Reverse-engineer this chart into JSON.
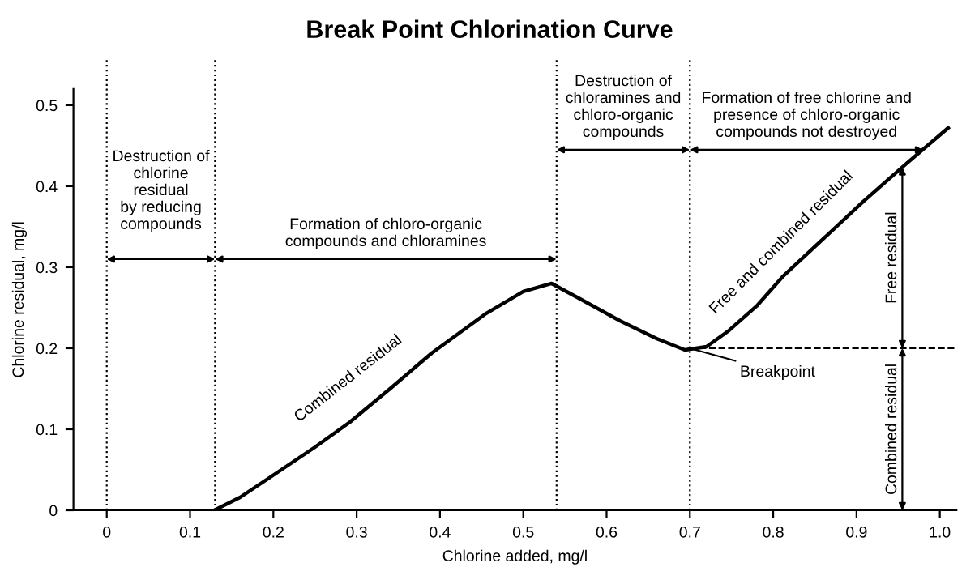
{
  "chart_data": {
    "type": "line",
    "title": "Break Point Chlorination Curve",
    "xlabel": "Chlorine added, mg/l",
    "ylabel": "Chlorine residual, mg/l",
    "series": [
      {
        "color": "#000000",
        "x": [
          0.129,
          0.16,
          0.195,
          0.25,
          0.292,
          0.34,
          0.39,
          0.454,
          0.5,
          0.534,
          0.57,
          0.616,
          0.66,
          0.694,
          0.72,
          0.747,
          0.78,
          0.811,
          0.86,
          0.908,
          0.96,
          1.01
        ],
        "values": [
          0.0,
          0.016,
          0.04,
          0.078,
          0.109,
          0.15,
          0.194,
          0.242,
          0.27,
          0.28,
          0.26,
          0.234,
          0.212,
          0.198,
          0.202,
          0.222,
          0.252,
          0.288,
          0.335,
          0.381,
          0.428,
          0.472
        ]
      }
    ],
    "xlim": [
      -0.04,
      1.02
    ],
    "ylim": [
      0,
      0.52
    ],
    "xticks": [
      0,
      0.1,
      0.2,
      0.3,
      0.4,
      0.5,
      0.6,
      0.7,
      0.8,
      0.9,
      {
        "value": 1.0,
        "label": "1.0"
      }
    ],
    "yticks": [
      0,
      0.1,
      0.2,
      0.3,
      0.4,
      0.5
    ],
    "grid": false,
    "legend": false,
    "marker": "none",
    "line_style": "solid",
    "ref_lines": [
      {
        "axis": "x",
        "value": 0,
        "line_style": "dotted",
        "color": "#000000"
      },
      {
        "axis": "x",
        "value": 0.13,
        "line_style": "dotted",
        "color": "#000000"
      },
      {
        "axis": "x",
        "value": 0.54,
        "line_style": "dotted",
        "color": "#000000"
      },
      {
        "axis": "x",
        "value": 0.7,
        "line_style": "dotted",
        "color": "#000000"
      },
      {
        "axis": "y",
        "value": 0.2,
        "line_style": "dashed",
        "color": "#000000"
      }
    ],
    "annotations": [
      "Destruction of\nchlorine\nresidual\nby reducing\ncompounds",
      "Formation of chloro-organic\ncompounds and chloramines",
      "Destruction of\nchloramines and\nchloro-organic\ncompounds",
      "Formation of free chlorine and\npresence of chloro-organic\ncompounds not destroyed",
      {
        "text": "Combined residual",
        "x": 0.39,
        "y": 0.194
      },
      "Free and combined residual",
      {
        "text": "Breakpoint",
        "x": 0.7,
        "y": 0.2
      },
      {
        "text": "Free residual",
        "x": 0.955,
        "y": 0.2
      },
      {
        "text": "Combined residual",
        "x": 0.955,
        "y": 0.2
      }
    ]
  }
}
